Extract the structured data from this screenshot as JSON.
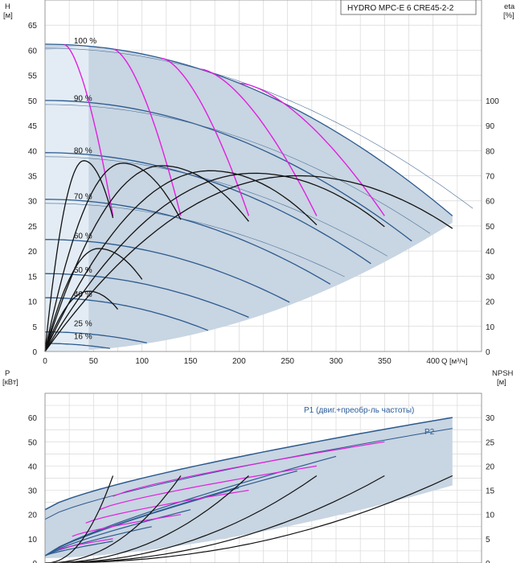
{
  "title_box": "HYDRO MPC-E 6 CRE45-2-2",
  "colors": {
    "envelope": "#c8d5e2",
    "envelope_light": "#e6eef6",
    "speed_curve": "#2b5a8f",
    "system_curve": "#e020e0",
    "efficiency_curve": "#111111",
    "grid": "#d8d8d8"
  },
  "chart_data": [
    {
      "type": "line",
      "name": "pump-performance-top",
      "ylabel_left": "H\n[м]",
      "ylabel_right": "eta\n[%]",
      "xlabel": "Q [м³/ч]",
      "xlim": [
        0,
        450
      ],
      "ylim_left": [
        0,
        70
      ],
      "ylim_right": [
        0,
        140
      ],
      "x_ticks": [
        0,
        50,
        100,
        150,
        200,
        250,
        300,
        350,
        400
      ],
      "y_ticks_left": [
        0,
        5,
        10,
        15,
        20,
        25,
        30,
        35,
        40,
        45,
        50,
        55,
        60,
        65
      ],
      "y_ticks_right": [
        0,
        10,
        20,
        30,
        40,
        50,
        60,
        70,
        80,
        90,
        100
      ],
      "grid": true,
      "speed_labels": [
        {
          "text": "100 %",
          "x": 38,
          "h": 61
        },
        {
          "text": "90 %",
          "x": 38,
          "h": 49.6
        },
        {
          "text": "80 %",
          "x": 38,
          "h": 39.2
        },
        {
          "text": "70 %",
          "x": 38,
          "h": 30
        },
        {
          "text": "60 %",
          "x": 38,
          "h": 22.2
        },
        {
          "text": "50 %",
          "x": 38,
          "h": 15.4
        },
        {
          "text": "40 %",
          "x": 38,
          "h": 10.6
        },
        {
          "text": "25 %",
          "x": 38,
          "h": 4.7
        },
        {
          "text": "16 %",
          "x": 38,
          "h": 2.2
        }
      ],
      "speed_curves_h": [
        {
          "speed": 100,
          "shutoff": 61.2,
          "qmax": 420,
          "hend": 27
        },
        {
          "speed": 90,
          "shutoff": 50,
          "qmax": 378,
          "hend": 22
        },
        {
          "speed": 80,
          "shutoff": 39.6,
          "qmax": 336,
          "hend": 17.5
        },
        {
          "speed": 70,
          "shutoff": 30.3,
          "qmax": 294,
          "hend": 13.4
        },
        {
          "speed": 60,
          "shutoff": 22.3,
          "qmax": 252,
          "hend": 9.8
        },
        {
          "speed": 50,
          "shutoff": 15.5,
          "qmax": 210,
          "hend": 6.8
        },
        {
          "speed": 40,
          "shutoff": 10.7,
          "qmax": 168,
          "hend": 4.2
        },
        {
          "speed": 25,
          "shutoff": 3.9,
          "qmax": 105,
          "hend": 1.7
        },
        {
          "speed": 16,
          "shutoff": 1.6,
          "qmax": 67,
          "hend": 0.6
        }
      ],
      "system_curves_h": [
        {
          "q_start": 20,
          "q_end": 70,
          "h_end": 27
        },
        {
          "q_start": 70,
          "q_end": 140,
          "h_end": 27
        },
        {
          "q_start": 120,
          "q_end": 210,
          "h_end": 27
        },
        {
          "q_start": 160,
          "q_end": 280,
          "h_end": 27
        },
        {
          "q_start": 200,
          "q_end": 350,
          "h_end": 27
        }
      ],
      "efficiency_curves": [
        {
          "q0": 0,
          "q1": 70,
          "peak_q": 40,
          "peak_eta": 76
        },
        {
          "q0": 0,
          "q1": 140,
          "peak_q": 80,
          "peak_eta": 75
        },
        {
          "q0": 0,
          "q1": 210,
          "peak_q": 120,
          "peak_eta": 74
        },
        {
          "q0": 0,
          "q1": 280,
          "peak_q": 170,
          "peak_eta": 72
        },
        {
          "q0": 0,
          "q1": 350,
          "peak_q": 215,
          "peak_eta": 71
        },
        {
          "q0": 0,
          "q1": 420,
          "peak_q": 260,
          "peak_eta": 70
        },
        {
          "q0": 0,
          "q1": 100,
          "peak_q": 55,
          "peak_eta": 41
        },
        {
          "q0": 0,
          "q1": 75,
          "peak_q": 45,
          "peak_eta": 24
        }
      ]
    },
    {
      "type": "line",
      "name": "power-npsh-bottom",
      "ylabel_left": "P\n[кВт]",
      "ylabel_right": "NPSH\n[м]",
      "ylim_left": [
        0,
        70
      ],
      "ylim_right": [
        0,
        35
      ],
      "y_ticks_left": [
        0,
        10,
        20,
        30,
        40,
        50,
        60
      ],
      "y_ticks_right": [
        0,
        5,
        10,
        15,
        20,
        25,
        30
      ],
      "grid": true,
      "series_labels": [
        "P1 (двиг.+преобр-ль частоты)",
        "P2"
      ],
      "p1_max": 60,
      "p2_max": 55.5
    }
  ]
}
